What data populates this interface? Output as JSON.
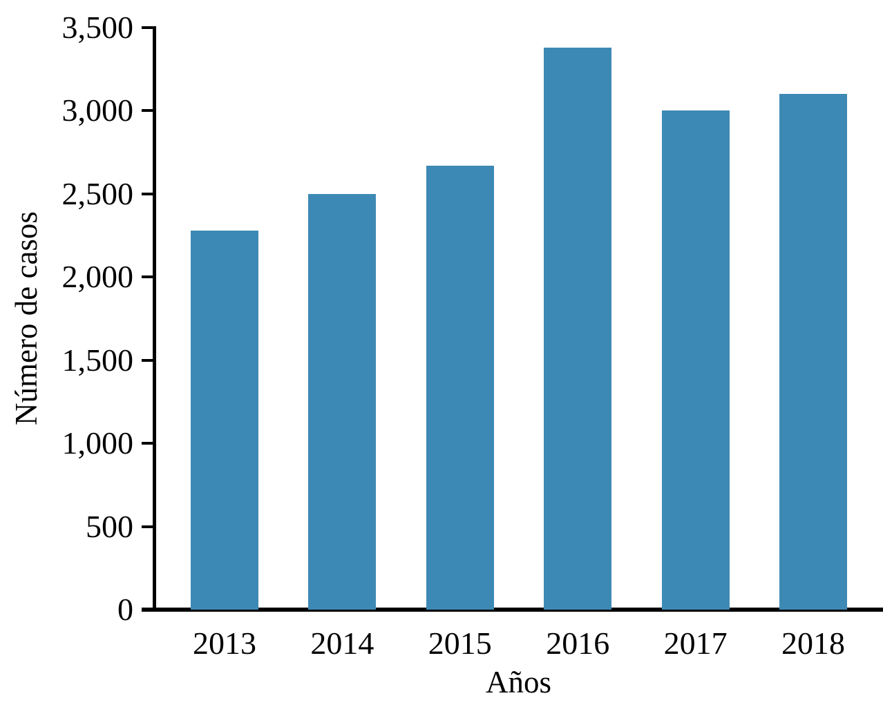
{
  "chart_data": {
    "type": "bar",
    "title": "",
    "categories": [
      "2013",
      "2014",
      "2015",
      "2016",
      "2017",
      "2018"
    ],
    "values": [
      2280,
      2500,
      2670,
      3380,
      3000,
      3100
    ],
    "xlabel": "Años",
    "ylabel": "Número de casos",
    "ylim": [
      0,
      3500
    ],
    "ytick_step": 500,
    "ytick_labels": [
      "0",
      "500",
      "1,000",
      "1,500",
      "2,000",
      "2,500",
      "3,000",
      "3,500"
    ],
    "bar_color": "#3d89b5",
    "axis_color": "#000000",
    "text_color": "#000000",
    "background": "#ffffff",
    "grid": false,
    "legend": null
  }
}
